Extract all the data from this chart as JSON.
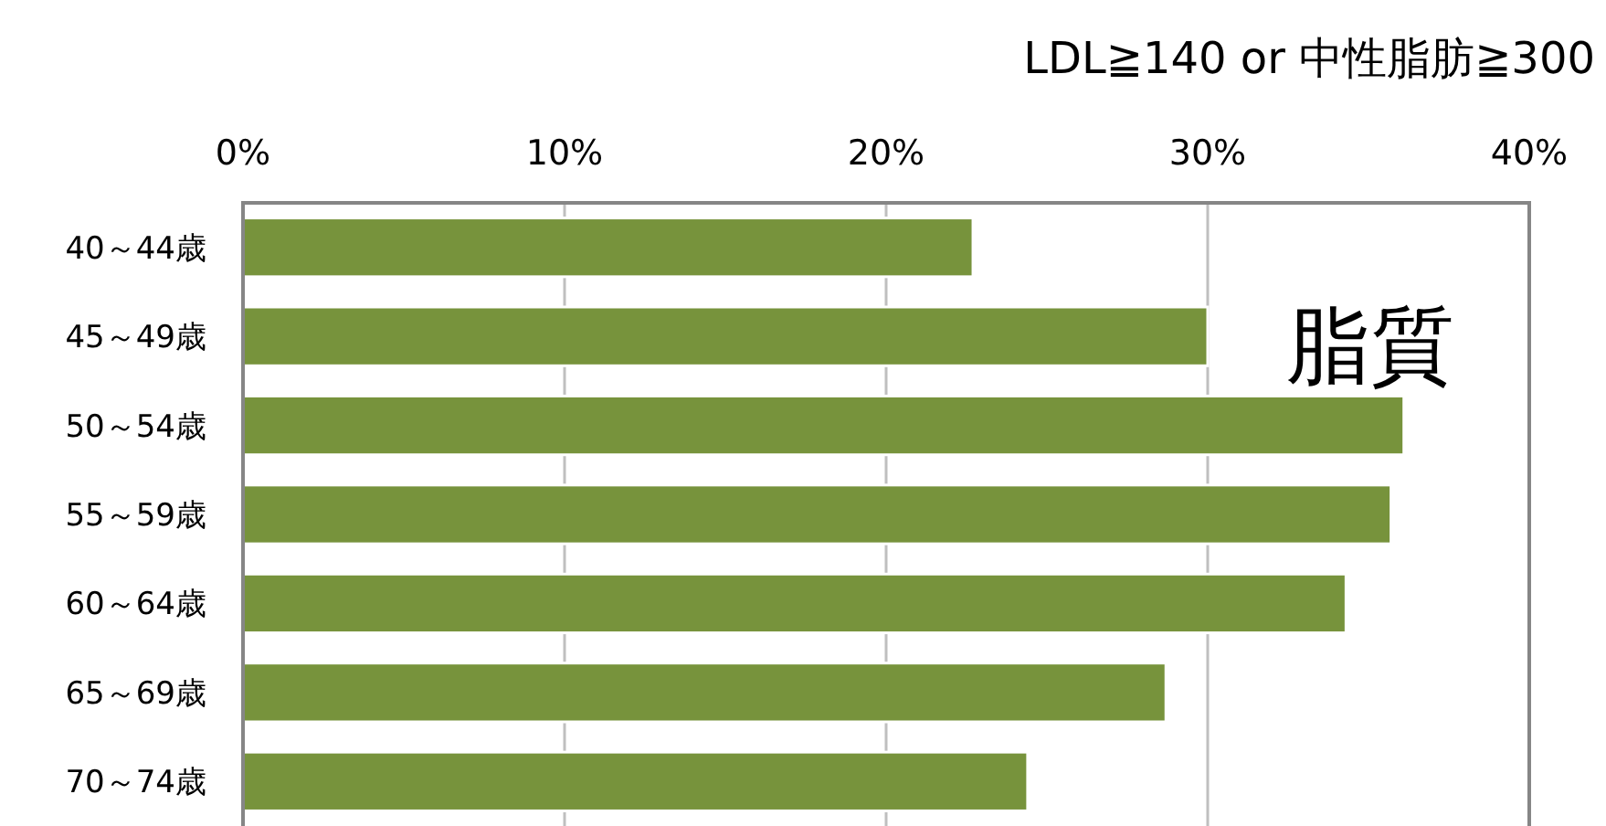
{
  "chart_data": {
    "type": "bar",
    "orientation": "horizontal",
    "title": "LDL≧140 or 中性脂肪≧300",
    "categories": [
      "40～44歳",
      "45～49歳",
      "50～54歳",
      "55～59歳",
      "60～64歳",
      "65～69歳",
      "70～74歳"
    ],
    "values": [
      22.7,
      30.0,
      36.1,
      35.7,
      34.3,
      28.7,
      24.4
    ],
    "color": "#77933c",
    "xlim": [
      0,
      40
    ],
    "xticks": [
      {
        "value": 0,
        "label": "0%"
      },
      {
        "value": 10,
        "label": "10%"
      },
      {
        "value": 20,
        "label": "20%"
      },
      {
        "value": 30,
        "label": "30%"
      },
      {
        "value": 40,
        "label": "40%"
      }
    ],
    "grid": "x",
    "annotations": [
      "脂質"
    ]
  }
}
